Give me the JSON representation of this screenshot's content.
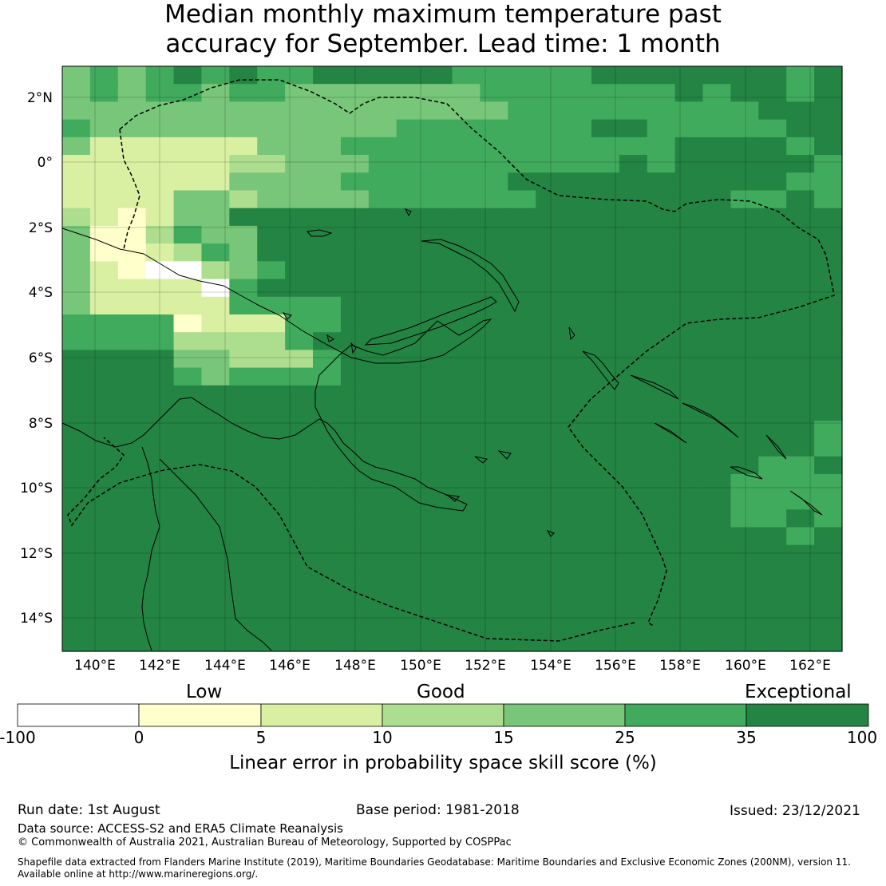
{
  "title": {
    "line1": "Median monthly maximum temperature past",
    "line2": "accuracy for September. Lead time: 1 month"
  },
  "map": {
    "lon_labels": [
      "140°E",
      "142°E",
      "144°E",
      "146°E",
      "148°E",
      "150°E",
      "152°E",
      "154°E",
      "156°E",
      "158°E",
      "160°E",
      "162°E"
    ],
    "lat_labels": [
      "2°N",
      "0°",
      "2°S",
      "4°S",
      "6°S",
      "8°S",
      "10°S",
      "12°S",
      "14°S"
    ],
    "region": "Papua New Guinea EEZ",
    "colors": {
      "below_0": "#ffffff",
      "0_5": "#ffffcc",
      "5_10": "#d9f0a3",
      "10_15": "#addd8e",
      "15_25": "#78c679",
      "25_35": "#41ab5d",
      "35_100": "#238443"
    }
  },
  "colorbar": {
    "categories": [
      "Low",
      "Good",
      "Exceptional"
    ],
    "ticks": [
      "-100",
      "0",
      "5",
      "10",
      "15",
      "25",
      "35",
      "100"
    ],
    "colors": [
      "#ffffff",
      "#ffffcc",
      "#d9f0a3",
      "#addd8e",
      "#78c679",
      "#41ab5d",
      "#238443"
    ],
    "label": "Linear error in probability space skill score (%)"
  },
  "footer": {
    "run_date": "Run date: 1st August",
    "base_period": "Base period: 1981-2018",
    "issued": "Issued: 23/12/2021",
    "data_source": "Data source: ACCESS-S2 and ERA5 Climate Reanalysis",
    "copyright": "© Commonwealth of Australia 2021, Australian Bureau of Meteorology, Supported by COSPPac",
    "shapefile_line1": "Shapefile data extracted from Flanders Marine Institute (2019), Maritime Boundaries Geodatabase: Maritime Boundaries and Exclusive Economic Zones (200NM), version 11.",
    "shapefile_line2": "Available online at http://www.marineregions.org/."
  }
}
